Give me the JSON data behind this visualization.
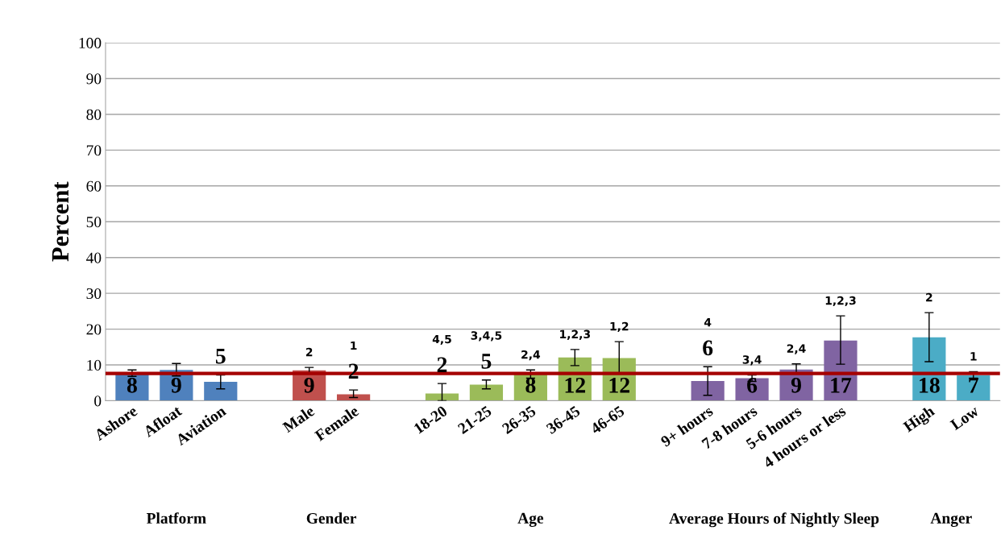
{
  "chart_data": {
    "type": "bar",
    "ylabel": "Percent",
    "categories": [
      "Ashore",
      "Afloat",
      "Aviation",
      null,
      "Male",
      "Female",
      null,
      "18-20",
      "21-25",
      "26-35",
      "36-45",
      "46-65",
      null,
      "9+ hours",
      "7-8 hours",
      "5-6 hours",
      "4 hours or less",
      null,
      "High",
      "Low"
    ],
    "values": [
      7.7,
      8.6,
      5.3,
      null,
      8.5,
      1.8,
      null,
      2.0,
      4.5,
      7.8,
      12.1,
      11.9,
      null,
      5.5,
      6.3,
      8.7,
      16.8,
      null,
      17.7,
      7.1
    ],
    "value_labels": [
      "8",
      "9",
      "5",
      null,
      "9",
      "2",
      null,
      "2",
      "5",
      "8",
      "12",
      "12",
      null,
      "6",
      "6",
      "9",
      "17",
      null,
      "18",
      "7"
    ],
    "colors": [
      "#4f81bd",
      "#4f81bd",
      "#4f81bd",
      null,
      "#c0504d",
      "#c0504d",
      null,
      "#9bbb59",
      "#9bbb59",
      "#9bbb59",
      "#9bbb59",
      "#9bbb59",
      null,
      "#8064a2",
      "#8064a2",
      "#8064a2",
      "#8064a2",
      null,
      "#4bacc6",
      "#4bacc6"
    ],
    "errors": [
      [
        6.8,
        8.6
      ],
      [
        6.9,
        10.4
      ],
      [
        3.3,
        7.2
      ],
      null,
      [
        7.7,
        9.3
      ],
      [
        0.9,
        3.0
      ],
      null,
      [
        0,
        4.8
      ],
      [
        3.3,
        5.8
      ],
      [
        6.3,
        8.6
      ],
      [
        9.8,
        14.3
      ],
      [
        7.8,
        16.5
      ],
      null,
      [
        1.5,
        9.5
      ],
      [
        5.4,
        7.2
      ],
      [
        7.6,
        10.3
      ],
      [
        10.2,
        23.7
      ],
      null,
      [
        10.9,
        24.6
      ],
      [
        6.3,
        8.1
      ]
    ],
    "ylim": [
      0,
      100
    ],
    "yticks": [
      0,
      10,
      20,
      30,
      40,
      50,
      60,
      70,
      80,
      90,
      100
    ],
    "grid": "y",
    "ref_lines": [
      {
        "axis": "y",
        "value": 7.6,
        "color": "#a50000"
      }
    ],
    "annotations": [
      "2",
      "1",
      "4,5",
      "3,4,5",
      "2,4",
      "1,2,3",
      "1,2",
      "4",
      "3,4",
      "2,4",
      "1,2,3",
      "2",
      "1",
      "Platform",
      "Gender",
      "Age",
      "Average Hours of Nightly Sleep",
      "Anger"
    ]
  }
}
